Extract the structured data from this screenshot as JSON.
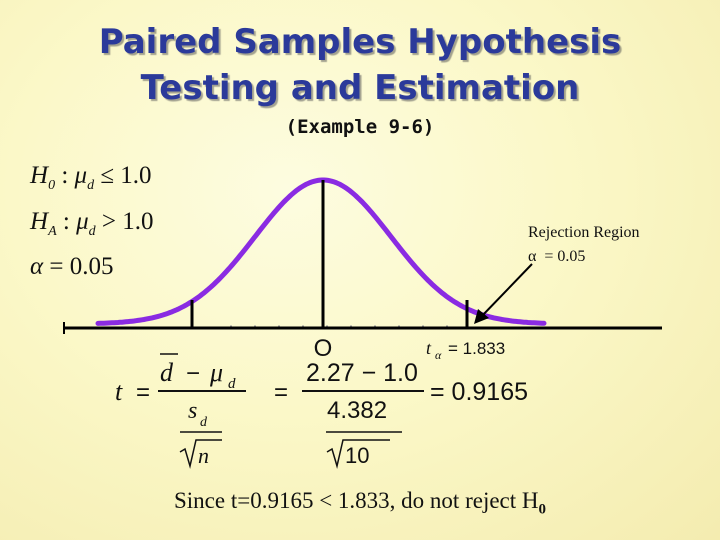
{
  "title_line1": "Paired Samples Hypothesis",
  "title_line2": "Testing and Estimation",
  "subtitle": "(Example 9-6)",
  "hypotheses": {
    "h0": {
      "symbol": "H",
      "sub": "0",
      "param": "μ",
      "param_sub": "d",
      "relation": "≤ 1.0"
    },
    "ha": {
      "symbol": "H",
      "sub": "A",
      "param": "μ",
      "param_sub": "d",
      "relation": "> 1.0"
    },
    "alpha": {
      "symbol": "α",
      "value": "= 0.05"
    }
  },
  "rejection": {
    "line1": "Rejection Region",
    "alpha_symbol": "α",
    "alpha_value": "= 0.05"
  },
  "curve_labels": {
    "zero": "O",
    "t_crit_symbol": "t",
    "t_crit_sub": "α",
    "t_crit_value": "= 1.833"
  },
  "formula": {
    "t": "t",
    "eq": "=",
    "dbar": "d",
    "minus": "−",
    "mu": "μ",
    "mu_sub": "d",
    "sd": "s",
    "sd_sub": "d",
    "n": "n",
    "num2": "2.27 − 1.0",
    "den2": "4.382",
    "sqrt_val": "10",
    "result": "= 0.9165"
  },
  "conclusion": "Since t=0.9165 < 1.833, do not reject H",
  "conclusion_sub": "0",
  "colors": {
    "title": "#2b3a9a",
    "curve": "#8a2be2",
    "text": "#111111"
  }
}
